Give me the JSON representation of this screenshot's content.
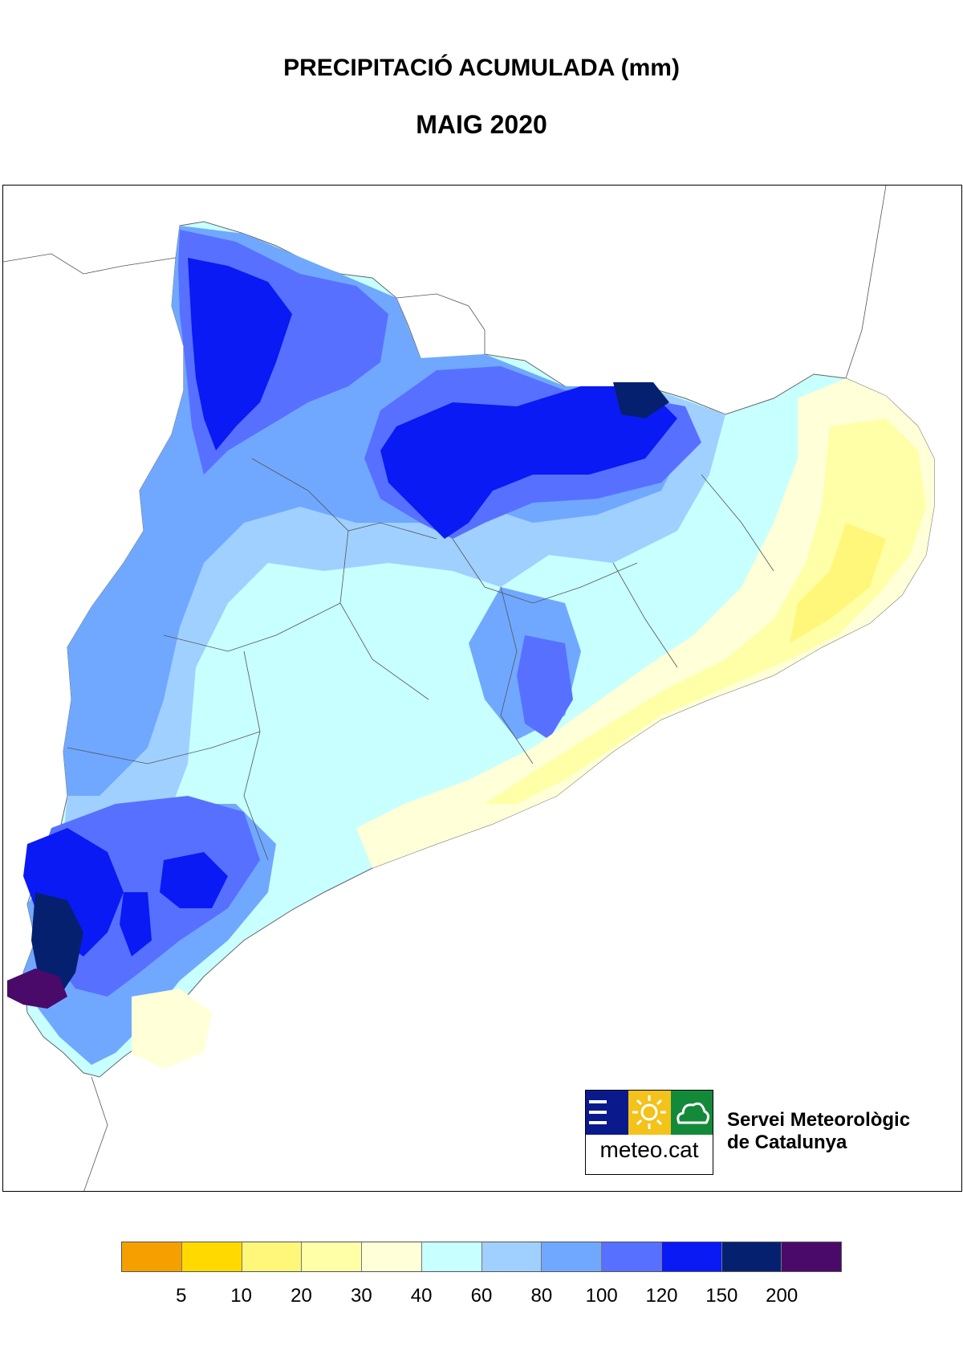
{
  "title": "PRECIPITACIÓ ACUMULADA (mm)",
  "subtitle": "MAIG 2020",
  "organization": {
    "logo_text": "meteo.cat",
    "name_line1": "Servei Meteorològic",
    "name_line2": "de Catalunya",
    "colors": {
      "blue": "#0a1a8c",
      "yellow": "#f3c21b",
      "green": "#138a3a"
    }
  },
  "legend": {
    "unit": "mm",
    "bins": [
      {
        "color": "#f5a000"
      },
      {
        "color": "#ffd900"
      },
      {
        "color": "#fff77a"
      },
      {
        "color": "#ffffa8"
      },
      {
        "color": "#ffffd8"
      },
      {
        "color": "#c8ffff"
      },
      {
        "color": "#a0d0ff"
      },
      {
        "color": "#70a8ff"
      },
      {
        "color": "#5870ff"
      },
      {
        "color": "#0a1af5"
      },
      {
        "color": "#062070"
      },
      {
        "color": "#4a0a6a"
      }
    ],
    "ticks": [
      "5",
      "10",
      "20",
      "30",
      "40",
      "60",
      "80",
      "100",
      "120",
      "150",
      "200"
    ]
  }
}
